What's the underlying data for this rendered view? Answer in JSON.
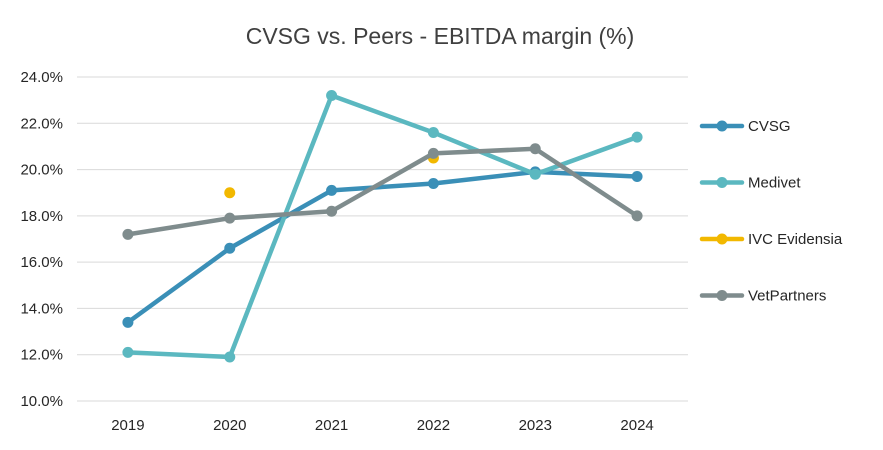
{
  "chart_data": {
    "type": "line",
    "title": "CVSG vs. Peers - EBITDA margin (%)",
    "xlabel": "",
    "ylabel": "",
    "categories": [
      "2019",
      "2020",
      "2021",
      "2022",
      "2023",
      "2024"
    ],
    "ylim": [
      10,
      24
    ],
    "y_ticks": [
      "10.0%",
      "12.0%",
      "14.0%",
      "16.0%",
      "18.0%",
      "20.0%",
      "22.0%",
      "24.0%"
    ],
    "grid": "horizontal",
    "legend_position": "right",
    "series": [
      {
        "name": "CVSG",
        "color": "#3a8fb7",
        "values": [
          13.4,
          16.6,
          19.1,
          19.4,
          19.9,
          19.7
        ],
        "connected": true
      },
      {
        "name": "Medivet",
        "color": "#5bb8c0",
        "values": [
          12.1,
          11.9,
          23.2,
          21.6,
          19.8,
          21.4
        ],
        "connected": true
      },
      {
        "name": "IVC Evidensia",
        "color": "#f2b800",
        "values": [
          null,
          19.0,
          null,
          20.5,
          null,
          null
        ],
        "connected": false
      },
      {
        "name": "VetPartners",
        "color": "#7f8c8d",
        "values": [
          17.2,
          17.9,
          18.2,
          20.7,
          20.9,
          18.0
        ],
        "connected": true
      }
    ]
  }
}
